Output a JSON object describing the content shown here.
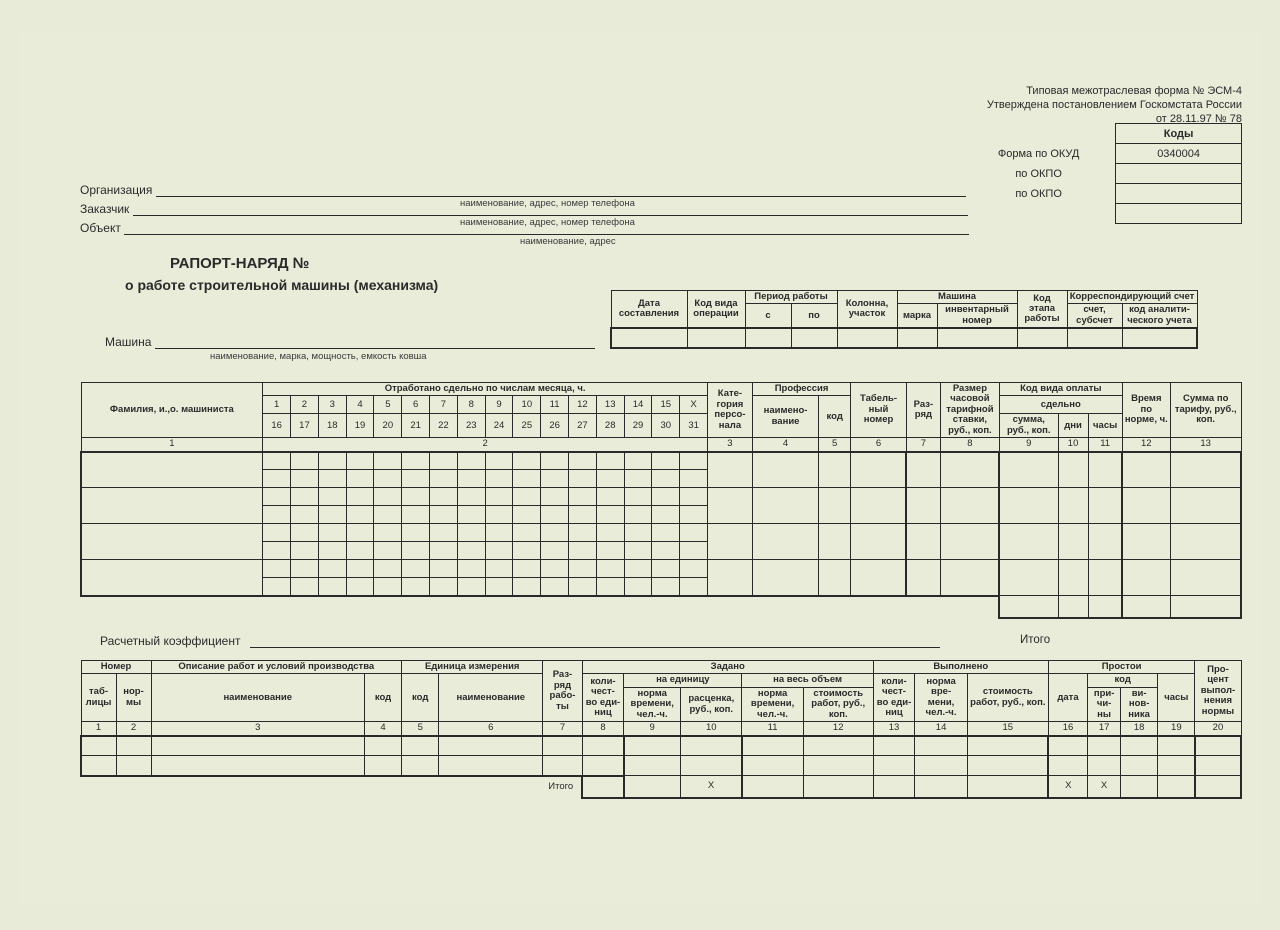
{
  "header": {
    "form_line1": "Типовая межотраслевая форма № ЭСМ-4",
    "form_line2": "Утверждена постановлением Госкомстата России",
    "form_line3": "от 28.11.97 № 78",
    "codes_title": "Коды",
    "okud_label": "Форма по ОКУД",
    "okud_value": "0340004",
    "okpo1_label": "по ОКПО",
    "okpo1_value": "",
    "okpo2_label": "по ОКПО",
    "okpo2_value": "",
    "row4_value": ""
  },
  "fields": {
    "org_label": "Организация",
    "org_hint": "наименование, адрес, номер телефона",
    "customer_label": "Заказчик",
    "customer_hint": "наименование, адрес, номер телефона",
    "object_label": "Объект",
    "object_hint": "наименование, адрес",
    "machine_label": "Машина",
    "machine_hint": "наименование, марка, мощность, емкость ковша"
  },
  "title": {
    "line1": "РАПОРТ-НАРЯД №",
    "line2": "о работе строительной машины (механизма)"
  },
  "tbl1": {
    "h_date": "Дата составления",
    "h_kod_vida": "Код вида операции",
    "h_period": "Период работы",
    "h_s": "с",
    "h_po": "по",
    "h_kolonna": "Колонна, участок",
    "h_machine": "Машина",
    "h_marka": "марка",
    "h_inv": "инвентарный номер",
    "h_kod_etapa": "Код этапа работы",
    "h_korr": "Корреспондирующий счет",
    "h_schet": "счет, субсчет",
    "h_anal": "код аналити- ческого учета"
  },
  "tbl2": {
    "h_fio": "Фамилия, и.,о. машиниста",
    "h_otrab": "Отработано сдельно по числам месяца, ч.",
    "days_r1": [
      "1",
      "2",
      "3",
      "4",
      "5",
      "6",
      "7",
      "8",
      "9",
      "10",
      "11",
      "12",
      "13",
      "14",
      "15",
      "Х"
    ],
    "days_r2": [
      "16",
      "17",
      "18",
      "19",
      "20",
      "21",
      "22",
      "23",
      "24",
      "25",
      "26",
      "27",
      "28",
      "29",
      "30",
      "31"
    ],
    "h_kateg": "Кате- гория персо- нала",
    "h_prof": "Профессия",
    "h_prof_name": "наимено- вание",
    "h_prof_kod": "код",
    "h_tabel": "Табель- ный номер",
    "h_razr": "Раз- ряд",
    "h_razmer": "Размер часовой тарифной ставки, руб., коп.",
    "h_kvo": "Код вида оплаты",
    "h_sdelno": "сдельно",
    "h_summa": "сумма, руб., коп.",
    "h_dni": "дни",
    "h_chasy": "часы",
    "h_vremya": "Время по норме, ч.",
    "h_sum_tarif": "Сумма по тарифу, руб., коп.",
    "colnums": [
      "1",
      "2",
      "3",
      "4",
      "5",
      "6",
      "7",
      "8",
      "9",
      "10",
      "11",
      "12",
      "13"
    ]
  },
  "koeff_label": "Расчетный коэффициент",
  "itogo_label": "Итого",
  "tbl3": {
    "h_nomer": "Номер",
    "h_tabl": "таб- лицы",
    "h_normy": "нор- мы",
    "h_opis": "Описание работ и условий производства",
    "h_opis_name": "наименование",
    "h_opis_kod": "код",
    "h_ed": "Единица измерения",
    "h_ed_kod": "код",
    "h_ed_name": "наименование",
    "h_razr": "Раз- ряд рабо- ты",
    "h_zadano": "Задано",
    "h_kol": "коли- чест- во еди- ниц",
    "h_na_ed": "на единицу",
    "h_na_ves": "на весь объем",
    "h_norma_vr": "норма времени, чел.-ч.",
    "h_rasc": "расценка, руб., коп.",
    "h_stoim": "стоимость работ, руб., коп.",
    "h_vyp": "Выполнено",
    "h_norma_vr2": "норма вре- мени, чел.-ч.",
    "h_prost": "Простои",
    "h_data": "дата",
    "h_kod": "код",
    "h_prich": "при- чи- ны",
    "h_vinov": "ви- нов- ника",
    "h_chasy": "часы",
    "h_proc": "Про- цент выпол- нения нормы",
    "colnums": [
      "1",
      "2",
      "3",
      "4",
      "5",
      "6",
      "7",
      "8",
      "9",
      "10",
      "11",
      "12",
      "13",
      "14",
      "15",
      "16",
      "17",
      "18",
      "19",
      "20"
    ],
    "x": "Х"
  },
  "style": {
    "bg": "#e9ecd9",
    "border": "#2a2a2a",
    "font_small": 9.5,
    "font_body": 12
  }
}
